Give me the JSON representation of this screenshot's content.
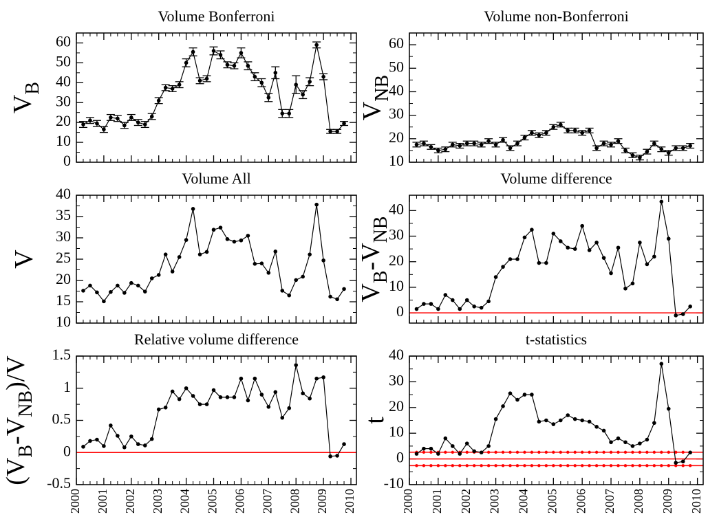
{
  "chart_data": [
    {
      "type": "line",
      "title": "Volume Bonferroni",
      "ylabel": [
        {
          "text": "V"
        },
        {
          "text": "B",
          "sub": true
        }
      ],
      "x": [
        2000.25,
        2000.5,
        2000.75,
        2001,
        2001.25,
        2001.5,
        2001.75,
        2002,
        2002.25,
        2002.5,
        2002.75,
        2003,
        2003.25,
        2003.5,
        2003.75,
        2004,
        2004.25,
        2004.5,
        2004.75,
        2005,
        2005.25,
        2005.5,
        2005.75,
        2006,
        2006.25,
        2006.5,
        2006.75,
        2007,
        2007.25,
        2007.5,
        2007.75,
        2008,
        2008.25,
        2008.5,
        2008.75,
        2009,
        2009.25,
        2009.5,
        2009.75
      ],
      "values": [
        19,
        21,
        19.5,
        16.5,
        22.5,
        22,
        18.5,
        22.5,
        20,
        19,
        23,
        31,
        37.5,
        37,
        39,
        50,
        55.5,
        41,
        42,
        56,
        54,
        49,
        48.5,
        55,
        48.5,
        43,
        40,
        32.5,
        45,
        24.5,
        24.5,
        39,
        34,
        40.5,
        59,
        43,
        15.5,
        15.5,
        19.5
      ],
      "errors": [
        1.5,
        1.5,
        1.5,
        1.5,
        1.5,
        1.5,
        1.5,
        1.5,
        1.5,
        1.5,
        1.5,
        1.5,
        1.5,
        1.5,
        1.5,
        2,
        2,
        1.5,
        1.5,
        2,
        2,
        1.5,
        1.5,
        2.5,
        2,
        2,
        2,
        2,
        3,
        2,
        2,
        4.5,
        2,
        2,
        1.5,
        1.5,
        1,
        1,
        1
      ],
      "color": "#000000",
      "xlim": [
        2000,
        2010.2
      ],
      "xticks": [
        2000,
        2001,
        2002,
        2003,
        2004,
        2005,
        2006,
        2007,
        2008,
        2009,
        2010
      ],
      "xtick_labels": false,
      "ylim": [
        0,
        65
      ],
      "yticks": [
        0,
        10,
        20,
        30,
        40,
        50,
        60
      ]
    },
    {
      "type": "line",
      "title": "Volume non-Bonferroni",
      "ylabel": [
        {
          "text": "V"
        },
        {
          "text": "NB",
          "sub": true
        }
      ],
      "x": [
        2000.25,
        2000.5,
        2000.75,
        2001,
        2001.25,
        2001.5,
        2001.75,
        2002,
        2002.25,
        2002.5,
        2002.75,
        2003,
        2003.25,
        2003.5,
        2003.75,
        2004,
        2004.25,
        2004.5,
        2004.75,
        2005,
        2005.25,
        2005.5,
        2005.75,
        2006,
        2006.25,
        2006.5,
        2006.75,
        2007,
        2007.25,
        2007.5,
        2007.75,
        2008,
        2008.25,
        2008.5,
        2008.75,
        2009,
        2009.25,
        2009.5,
        2009.75
      ],
      "values": [
        17.5,
        18,
        16.5,
        15,
        15.5,
        17.5,
        17,
        18,
        18,
        17.5,
        19,
        17.5,
        19.5,
        16,
        18,
        20.5,
        22.5,
        21.5,
        22.5,
        25,
        26,
        23.5,
        23.5,
        22.5,
        23.5,
        16,
        18,
        17.5,
        19,
        15,
        13,
        12,
        14.5,
        18,
        15.5,
        14,
        16,
        16,
        17
      ],
      "errors": [
        1,
        1,
        1,
        1,
        1,
        1,
        1,
        1,
        1,
        1,
        1,
        1,
        1,
        1,
        1,
        1,
        1,
        1,
        1,
        1,
        1,
        1,
        1,
        1,
        1,
        1,
        1,
        1,
        1,
        1,
        1,
        1,
        1,
        1,
        1,
        1,
        1,
        1,
        1
      ],
      "color": "#000000",
      "xlim": [
        2000,
        2010.2
      ],
      "xticks": [
        2000,
        2001,
        2002,
        2003,
        2004,
        2005,
        2006,
        2007,
        2008,
        2009,
        2010
      ],
      "xtick_labels": false,
      "ylim": [
        10,
        65
      ],
      "yticks": [
        10,
        20,
        30,
        40,
        50,
        60
      ]
    },
    {
      "type": "line",
      "title": "Volume All",
      "ylabel": [
        {
          "text": "V"
        }
      ],
      "x": [
        2000.25,
        2000.5,
        2000.75,
        2001,
        2001.25,
        2001.5,
        2001.75,
        2002,
        2002.25,
        2002.5,
        2002.75,
        2003,
        2003.25,
        2003.5,
        2003.75,
        2004,
        2004.25,
        2004.5,
        2004.75,
        2005,
        2005.25,
        2005.5,
        2005.75,
        2006,
        2006.25,
        2006.5,
        2006.75,
        2007,
        2007.25,
        2007.5,
        2007.75,
        2008,
        2008.25,
        2008.5,
        2008.75,
        2009,
        2009.25,
        2009.5,
        2009.75
      ],
      "values": [
        17.6,
        18.8,
        17.2,
        15.1,
        17.3,
        18.8,
        17.1,
        19.4,
        18.8,
        17.4,
        20.5,
        21.3,
        26.1,
        22.1,
        25.5,
        29.5,
        36.8,
        26.1,
        26.7,
        31.9,
        32.4,
        29.7,
        29.1,
        29.4,
        30.5,
        23.9,
        24,
        21.8,
        26.8,
        17.6,
        16.5,
        20.1,
        20.9,
        26.1,
        37.8,
        24.7,
        16.2,
        15.6,
        18
      ],
      "color": "#000000",
      "xlim": [
        2000,
        2010.2
      ],
      "xticks": [
        2000,
        2001,
        2002,
        2003,
        2004,
        2005,
        2006,
        2007,
        2008,
        2009,
        2010
      ],
      "xtick_labels": false,
      "ylim": [
        10,
        40
      ],
      "yticks": [
        10,
        15,
        20,
        25,
        30,
        35,
        40
      ]
    },
    {
      "type": "line",
      "title": "Volume difference",
      "ylabel": [
        {
          "text": "V"
        },
        {
          "text": "B",
          "sub": true
        },
        {
          "text": "-V"
        },
        {
          "text": "NB",
          "sub": true
        }
      ],
      "x": [
        2000.25,
        2000.5,
        2000.75,
        2001,
        2001.25,
        2001.5,
        2001.75,
        2002,
        2002.25,
        2002.5,
        2002.75,
        2003,
        2003.25,
        2003.5,
        2003.75,
        2004,
        2004.25,
        2004.5,
        2004.75,
        2005,
        2005.25,
        2005.5,
        2005.75,
        2006,
        2006.25,
        2006.5,
        2006.75,
        2007,
        2007.25,
        2007.5,
        2007.75,
        2008,
        2008.25,
        2008.5,
        2008.75,
        2009,
        2009.25,
        2009.5,
        2009.75
      ],
      "values": [
        1.5,
        3.5,
        3.5,
        1.5,
        7,
        5,
        1.5,
        5,
        2.5,
        2,
        4.5,
        14,
        18,
        21,
        21,
        29.5,
        32.5,
        19.5,
        19.5,
        31,
        28,
        25.5,
        25,
        34,
        24.5,
        27.5,
        21.5,
        15.5,
        25.5,
        9.5,
        11.5,
        27.5,
        19,
        22,
        43.5,
        29,
        -1,
        -0.5,
        2.5
      ],
      "color": "#000000",
      "xlim": [
        2000,
        2010.2
      ],
      "xticks": [
        2000,
        2001,
        2002,
        2003,
        2004,
        2005,
        2006,
        2007,
        2008,
        2009,
        2010
      ],
      "xtick_labels": false,
      "ylim": [
        -4,
        46
      ],
      "yticks": [
        0,
        10,
        20,
        30,
        40
      ],
      "reference_lines": [
        {
          "y": 0,
          "color": "#ff0000",
          "markers": false
        }
      ]
    },
    {
      "type": "line",
      "title": "Relative volume difference",
      "ylabel": [
        {
          "text": "(V"
        },
        {
          "text": "B",
          "sub": true
        },
        {
          "text": "-V"
        },
        {
          "text": "NB",
          "sub": true
        },
        {
          "text": ")/V"
        }
      ],
      "x": [
        2000.25,
        2000.5,
        2000.75,
        2001,
        2001.25,
        2001.5,
        2001.75,
        2002,
        2002.25,
        2002.5,
        2002.75,
        2003,
        2003.25,
        2003.5,
        2003.75,
        2004,
        2004.25,
        2004.5,
        2004.75,
        2005,
        2005.25,
        2005.5,
        2005.75,
        2006,
        2006.25,
        2006.5,
        2006.75,
        2007,
        2007.25,
        2007.5,
        2007.75,
        2008,
        2008.25,
        2008.5,
        2008.75,
        2009,
        2009.25,
        2009.5,
        2009.75
      ],
      "values": [
        0.09,
        0.18,
        0.2,
        0.1,
        0.42,
        0.26,
        0.08,
        0.25,
        0.13,
        0.11,
        0.21,
        0.67,
        0.7,
        0.95,
        0.83,
        1,
        0.88,
        0.75,
        0.75,
        0.97,
        0.86,
        0.86,
        0.86,
        1.15,
        0.81,
        1.15,
        0.9,
        0.71,
        0.94,
        0.54,
        0.69,
        1.36,
        0.92,
        0.84,
        1.15,
        1.17,
        -0.06,
        -0.05,
        0.13
      ],
      "color": "#000000",
      "xlim": [
        2000,
        2010.2
      ],
      "xticks": [
        2000,
        2001,
        2002,
        2003,
        2004,
        2005,
        2006,
        2007,
        2008,
        2009,
        2010
      ],
      "xtick_labels": true,
      "ylim": [
        -0.5,
        1.5
      ],
      "yticks": [
        -0.5,
        0,
        0.5,
        1,
        1.5
      ],
      "reference_lines": [
        {
          "y": 0,
          "color": "#ff0000",
          "markers": false
        }
      ]
    },
    {
      "type": "line",
      "title": "t-statistics",
      "ylabel": [
        {
          "text": "t"
        }
      ],
      "x": [
        2000.25,
        2000.5,
        2000.75,
        2001,
        2001.25,
        2001.5,
        2001.75,
        2002,
        2002.25,
        2002.5,
        2002.75,
        2003,
        2003.25,
        2003.5,
        2003.75,
        2004,
        2004.25,
        2004.5,
        2004.75,
        2005,
        2005.25,
        2005.5,
        2005.75,
        2006,
        2006.25,
        2006.5,
        2006.75,
        2007,
        2007.25,
        2007.5,
        2007.75,
        2008,
        2008.25,
        2008.5,
        2008.75,
        2009,
        2009.25,
        2009.5,
        2009.75
      ],
      "values": [
        2,
        4,
        4,
        2,
        8,
        5,
        2,
        6,
        3,
        2.5,
        5,
        15.5,
        20.5,
        25.5,
        23,
        25,
        25,
        14.5,
        15,
        13.5,
        15,
        17,
        15.5,
        15,
        14.5,
        12.5,
        11,
        6.5,
        8,
        6.5,
        5,
        6,
        7.5,
        14,
        37,
        19.5,
        -1.5,
        -1,
        2.5
      ],
      "color": "#000000",
      "xlim": [
        2000,
        2010.2
      ],
      "xticks": [
        2000,
        2001,
        2002,
        2003,
        2004,
        2005,
        2006,
        2007,
        2008,
        2009,
        2010
      ],
      "xtick_labels": true,
      "ylim": [
        -10,
        40
      ],
      "yticks": [
        -10,
        0,
        10,
        20,
        30,
        40
      ],
      "reference_lines": [
        {
          "y": 0,
          "color": "#ff0000",
          "markers": false
        },
        {
          "y": 2.6,
          "color": "#ff0000",
          "markers": true
        },
        {
          "y": -2.6,
          "color": "#ff0000",
          "markers": true
        }
      ]
    }
  ]
}
